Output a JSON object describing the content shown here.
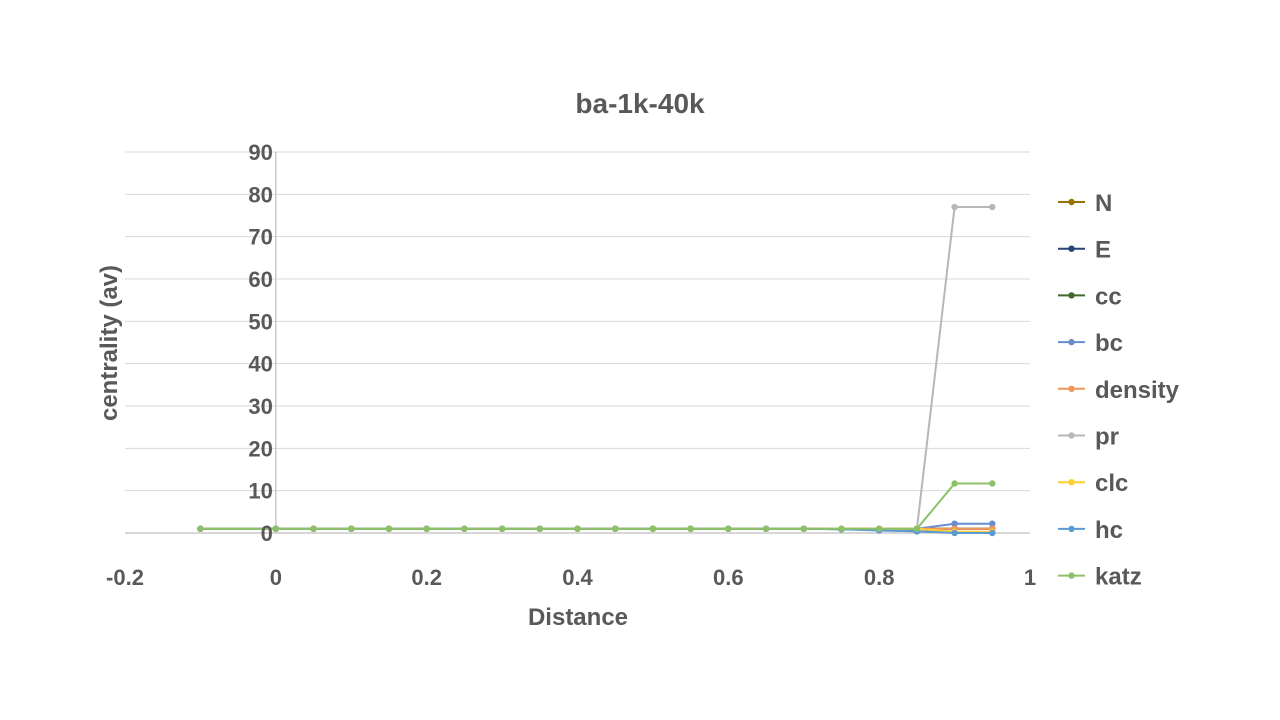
{
  "chart_data": {
    "type": "scatter",
    "title": "ba-1k-40k",
    "xlabel": "Distance",
    "ylabel": "centrality (av)",
    "xlim": [
      -0.2,
      1
    ],
    "ylim": [
      0,
      90
    ],
    "xticks": [
      -0.2,
      0,
      0.2,
      0.4,
      0.6,
      0.8,
      1
    ],
    "xtick_labels": [
      "-0.2",
      "0",
      "0.2",
      "0.4",
      "0.6",
      "0.8",
      "1"
    ],
    "yticks": [
      0,
      10,
      20,
      30,
      40,
      50,
      60,
      70,
      80,
      90
    ],
    "ytick_labels": [
      "0",
      "10",
      "20",
      "30",
      "40",
      "50",
      "60",
      "70",
      "80",
      "90"
    ],
    "grid": true,
    "legend_position": "right",
    "x": [
      -0.1,
      0,
      0.05,
      0.1,
      0.15,
      0.2,
      0.25,
      0.3,
      0.35,
      0.4,
      0.45,
      0.5,
      0.55,
      0.6,
      0.65,
      0.7,
      0.75,
      0.8,
      0.85,
      0.9,
      0.95
    ],
    "series": [
      {
        "name": "N",
        "color": "#997300",
        "values": [
          1,
          1,
          1,
          1,
          1,
          1,
          1,
          1,
          1,
          1,
          1,
          1,
          1,
          1,
          1,
          1,
          1,
          1,
          1,
          1,
          1
        ]
      },
      {
        "name": "E",
        "color": "#264478",
        "values": [
          1,
          1,
          1,
          1,
          1,
          1,
          1,
          1,
          1,
          1,
          1,
          1,
          1,
          1,
          1,
          1,
          1,
          1,
          1,
          1,
          1
        ]
      },
      {
        "name": "cc",
        "color": "#43682B",
        "values": [
          1,
          1,
          1,
          1,
          1,
          1,
          1,
          1,
          1,
          1,
          1,
          1,
          1,
          1,
          1,
          1,
          0.9,
          0.7,
          0.4,
          0.1,
          0.1
        ]
      },
      {
        "name": "bc",
        "color": "#698ED0",
        "values": [
          1,
          1,
          1,
          1,
          1,
          1,
          1,
          1,
          1,
          1,
          1,
          1,
          1,
          1,
          1,
          1,
          1,
          1,
          1,
          2.2,
          2.2
        ]
      },
      {
        "name": "density",
        "color": "#F1975A",
        "values": [
          1,
          1,
          1,
          1,
          1,
          1,
          1,
          1,
          1,
          1,
          1,
          1,
          1,
          1,
          1,
          1,
          1,
          1,
          1,
          1,
          1
        ]
      },
      {
        "name": "pr",
        "color": "#B7B7B7",
        "values": [
          1,
          1,
          1,
          1,
          1,
          1,
          1,
          1,
          1,
          1,
          1,
          1,
          1,
          1,
          1,
          1,
          1,
          1,
          1,
          77,
          77
        ]
      },
      {
        "name": "clc",
        "color": "#FFCD33",
        "values": [
          1,
          1,
          1,
          1,
          1,
          1,
          1,
          1,
          1,
          1,
          1,
          1,
          1,
          1,
          1,
          1,
          1,
          1,
          1,
          0.3,
          0.3
        ]
      },
      {
        "name": "hc",
        "color": "#5B9BD5",
        "values": [
          1,
          1,
          1,
          1,
          1,
          1,
          1,
          1,
          1,
          1,
          1,
          1,
          1,
          1,
          1,
          1,
          0.9,
          0.6,
          0.4,
          0,
          0
        ]
      },
      {
        "name": "katz",
        "color": "#8CC168",
        "values": [
          1,
          1,
          1,
          1,
          1,
          1,
          1,
          1,
          1,
          1,
          1,
          1,
          1,
          1,
          1,
          1,
          1,
          1,
          1,
          11.7,
          11.7
        ]
      }
    ]
  }
}
